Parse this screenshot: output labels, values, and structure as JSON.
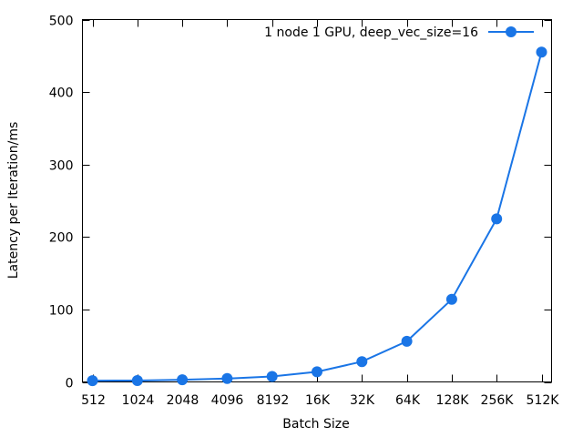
{
  "chart_data": {
    "type": "line",
    "categories": [
      "512",
      "1024",
      "2048",
      "4096",
      "8192",
      "16K",
      "32K",
      "64K",
      "128K",
      "256K",
      "512K"
    ],
    "series": [
      {
        "name": "1 node 1 GPU, deep_vec_size=16",
        "values": [
          1.8,
          1.9,
          3,
          4.6,
          7.5,
          14,
          28,
          56,
          114,
          225,
          455
        ],
        "color": "#1a75e6"
      }
    ],
    "xlabel": "Batch Size",
    "ylabel": "Latency per Iteration/ms",
    "ylim": [
      0,
      500
    ],
    "yticks": [
      0,
      100,
      200,
      300,
      400,
      500
    ],
    "grid": false,
    "legend_position": "top-right",
    "marker": "circle"
  }
}
